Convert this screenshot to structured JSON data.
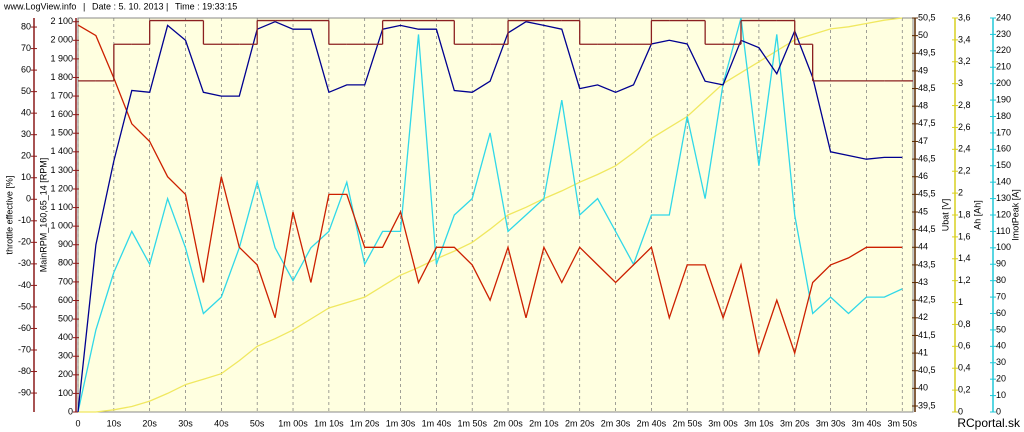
{
  "header": [
    "www.LogView.info",
    "Date : 5. 10. 2013",
    "Time : 19:33:15"
  ],
  "footer": "RCportal.sk",
  "chart_data": {
    "type": "line",
    "x": [
      0,
      5,
      10,
      15,
      20,
      25,
      30,
      35,
      40,
      45,
      50,
      55,
      60,
      65,
      70,
      75,
      80,
      85,
      90,
      95,
      100,
      105,
      110,
      115,
      120,
      125,
      130,
      135,
      140,
      145,
      150,
      155,
      160,
      165,
      170,
      175,
      180,
      185,
      190,
      195,
      200,
      205,
      210,
      215,
      220,
      225,
      230
    ],
    "xlim": [
      0,
      233
    ],
    "xticks": [
      0,
      {
        "value": 10,
        "label": "10s"
      },
      {
        "value": 20,
        "label": "20s"
      },
      {
        "value": 30,
        "label": "30s"
      },
      {
        "value": 40,
        "label": "40s"
      },
      {
        "value": 50,
        "label": "50s"
      },
      {
        "value": 60,
        "label": "1m 00s"
      },
      {
        "value": 70,
        "label": "1m 10s"
      },
      {
        "value": 80,
        "label": "1m 20s"
      },
      {
        "value": 90,
        "label": "1m 30s"
      },
      {
        "value": 100,
        "label": "1m 40s"
      },
      {
        "value": 110,
        "label": "1m 50s"
      },
      {
        "value": 120,
        "label": "2m 00s"
      },
      {
        "value": 130,
        "label": "2m 10s"
      },
      {
        "value": 140,
        "label": "2m 20s"
      },
      {
        "value": 150,
        "label": "2m 30s"
      },
      {
        "value": 160,
        "label": "2m 40s"
      },
      {
        "value": 170,
        "label": "2m 50s"
      },
      {
        "value": 180,
        "label": "3m 00s"
      },
      {
        "value": 190,
        "label": "3m 10s"
      },
      {
        "value": 200,
        "label": "3m 20s"
      },
      {
        "value": 210,
        "label": "3m 30s"
      },
      {
        "value": 220,
        "label": "3m 40s"
      },
      {
        "value": 230,
        "label": "3m 50s"
      }
    ],
    "grid": true,
    "axes": [
      {
        "label": "throttle effective [%]",
        "color": "#8b1a1a",
        "ylim": [
          -98.8,
          84.2
        ],
        "yticks": [
          80,
          70,
          60,
          50,
          40,
          30,
          20,
          10,
          0,
          -10,
          -20,
          -30,
          -40,
          -50,
          -60,
          -70,
          -80,
          -90
        ]
      },
      {
        "label": "MainRPM_160,65_14 [RPM]",
        "color": "#8b1a1a",
        "ylim": [
          0,
          2120
        ],
        "yticks": [
          {
            "value": 2100,
            "label": "2 100"
          },
          {
            "value": 2000,
            "label": "2 000"
          },
          {
            "value": 1900,
            "label": "1 900"
          },
          {
            "value": 1800,
            "label": "1 800"
          },
          {
            "value": 1700,
            "label": "1 700"
          },
          {
            "value": 1600,
            "label": "1 600"
          },
          {
            "value": 1500,
            "label": "1 500"
          },
          {
            "value": 1400,
            "label": "1 400"
          },
          {
            "value": 1300,
            "label": "1 300"
          },
          {
            "value": 1200,
            "label": "1 200"
          },
          {
            "value": 1100,
            "label": "1 100"
          },
          {
            "value": 1000,
            "label": "1 000"
          },
          900,
          800,
          700,
          600,
          500,
          400,
          300,
          200,
          100,
          0
        ]
      },
      {
        "label": "Ubat [V]",
        "color": "#5a2a00",
        "ylim": [
          39.33,
          50.5
        ],
        "yticks": [
          {
            "value": 50.5,
            "label": "50,5"
          },
          50,
          {
            "value": 49.5,
            "label": "49,5"
          },
          49,
          {
            "value": 48.5,
            "label": "48,5"
          },
          48,
          {
            "value": 47.5,
            "label": "47,5"
          },
          47,
          {
            "value": 46.5,
            "label": "46,5"
          },
          46,
          {
            "value": 45.5,
            "label": "45,5"
          },
          45,
          {
            "value": 44.5,
            "label": "44,5"
          },
          44,
          {
            "value": 43.5,
            "label": "43,5"
          },
          43,
          {
            "value": 42.5,
            "label": "42,5"
          },
          42,
          {
            "value": 41.5,
            "label": "41,5"
          },
          41,
          {
            "value": 40.5,
            "label": "40,5"
          },
          40,
          {
            "value": 39.5,
            "label": "39,5"
          }
        ]
      },
      {
        "label": "Ah [Ah]",
        "color": "#d8d020",
        "ylim": [
          0,
          3.6
        ],
        "yticks": [
          {
            "value": 3.6,
            "label": "3,6"
          },
          {
            "value": 3.4,
            "label": "3,4"
          },
          {
            "value": 3.2,
            "label": "3,2"
          },
          3,
          {
            "value": 2.8,
            "label": "2,8"
          },
          {
            "value": 2.6,
            "label": "2,6"
          },
          {
            "value": 2.4,
            "label": "2,4"
          },
          {
            "value": 2.2,
            "label": "2,2"
          },
          2,
          {
            "value": 1.8,
            "label": "1,8"
          },
          {
            "value": 1.6,
            "label": "1,6"
          },
          {
            "value": 1.4,
            "label": "1,4"
          },
          {
            "value": 1.2,
            "label": "1,2"
          },
          1,
          {
            "value": 0.8,
            "label": "0,8"
          },
          {
            "value": 0.6,
            "label": "0,6"
          },
          {
            "value": 0.4,
            "label": "0,4"
          },
          {
            "value": 0.2,
            "label": "0,2"
          },
          0
        ]
      },
      {
        "label": "ImotPeak [A]",
        "color": "#20c8d8",
        "ylim": [
          0,
          240
        ],
        "yticks": [
          240,
          230,
          220,
          210,
          200,
          190,
          180,
          170,
          160,
          150,
          140,
          130,
          120,
          110,
          100,
          90,
          80,
          70,
          60,
          50,
          40,
          30,
          20,
          10,
          0
        ]
      }
    ],
    "series": [
      {
        "axis": 3,
        "color": "#f0e860",
        "values": [
          0,
          0,
          0.02,
          0.05,
          0.1,
          0.17,
          0.25,
          0.3,
          0.35,
          0.47,
          0.6,
          0.67,
          0.75,
          0.85,
          0.95,
          1,
          1.05,
          1.15,
          1.25,
          1.32,
          1.4,
          1.47,
          1.55,
          1.67,
          1.8,
          1.87,
          1.95,
          2.02,
          2.1,
          2.17,
          2.25,
          2.37,
          2.5,
          2.6,
          2.7,
          2.85,
          3,
          3.1,
          3.2,
          3.3,
          3.4,
          3.45,
          3.5,
          3.52,
          3.55,
          3.58,
          3.6
        ]
      },
      {
        "axis": 4,
        "color": "#30d8e8",
        "values": [
          0,
          50,
          85,
          110,
          90,
          130,
          100,
          60,
          70,
          100,
          140,
          100,
          80,
          100,
          110,
          140,
          90,
          110,
          110,
          230,
          90,
          120,
          130,
          170,
          110,
          120,
          130,
          190,
          120,
          130,
          110,
          90,
          120,
          120,
          180,
          130,
          200,
          240,
          150,
          230,
          120,
          60,
          70,
          60,
          70,
          70,
          75
        ]
      },
      {
        "axis": 2,
        "color": "#cc2000",
        "values": [
          50.3,
          50,
          48.8,
          47.5,
          47,
          46,
          45.5,
          43,
          46,
          44,
          43.5,
          42,
          45,
          43,
          45.5,
          45.5,
          44,
          44,
          45,
          43,
          44,
          44,
          43.5,
          42.5,
          44,
          42,
          44,
          43,
          44,
          43.5,
          43,
          43.5,
          44,
          42,
          43.5,
          43.5,
          42,
          43.5,
          41,
          42.5,
          41,
          43,
          43.5,
          43.7,
          44,
          44,
          44
        ]
      },
      {
        "axis": 1,
        "color": "#000090",
        "values": [
          0,
          900,
          1350,
          1730,
          1720,
          2080,
          2000,
          1720,
          1700,
          1700,
          2060,
          2100,
          2060,
          2060,
          1720,
          1760,
          1760,
          2060,
          2080,
          2060,
          2060,
          1730,
          1720,
          1780,
          2040,
          2100,
          2080,
          2060,
          1740,
          1760,
          1720,
          1760,
          1980,
          2000,
          1980,
          1780,
          1760,
          2000,
          1960,
          1820,
          2050,
          1800,
          1400,
          1380,
          1360,
          1370,
          1370
        ]
      },
      {
        "axis": 0,
        "color": "#8b2020",
        "step": true,
        "values": [
          55,
          55,
          72,
          72,
          83,
          83,
          83,
          72,
          72,
          72,
          83,
          83,
          83,
          83,
          72,
          72,
          72,
          83,
          83,
          83,
          83,
          72,
          72,
          72,
          83,
          83,
          83,
          83,
          72,
          72,
          72,
          72,
          83,
          83,
          83,
          72,
          72,
          83,
          83,
          83,
          72,
          55,
          55,
          55,
          55,
          55,
          55
        ]
      }
    ]
  }
}
